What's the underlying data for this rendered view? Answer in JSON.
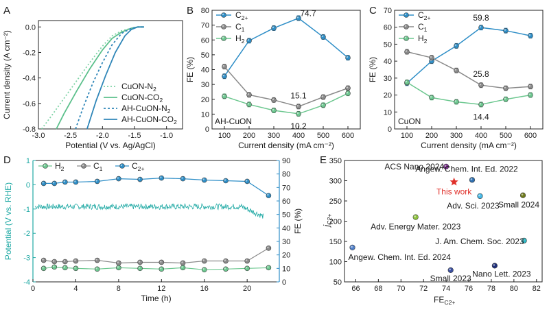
{
  "colors": {
    "axis": "#222222",
    "teal": "#1fa9a4",
    "c2": "#2e8ec7",
    "c1": "#8a8a8a",
    "h2": "#6cc78f",
    "red": "#e0302a"
  },
  "chart_data": [
    {
      "panel": "A",
      "type": "line",
      "xlabel": "Potential (V vs. Ag/AgCl)",
      "ylabel": "Current density (A cm⁻²)",
      "xlim": [
        -3.0,
        -0.75
      ],
      "ylim": [
        -0.8,
        0.05
      ],
      "xticks": [
        -3.0,
        -2.5,
        -2.0,
        -1.5,
        -1.0
      ],
      "xtick_labels": [
        "-3.0",
        "-2.5",
        "-2.0",
        "-1.5",
        "-1.0"
      ],
      "yticks": [
        0.0,
        -0.2,
        -0.4,
        -0.6,
        -0.8
      ],
      "ytick_labels": [
        "0.0",
        "-0.2",
        "-0.4",
        "-0.6",
        "-0.8"
      ],
      "legend": [
        {
          "label": "CuON-N",
          "sub": "2"
        },
        {
          "label": "CuON-CO",
          "sub": "2"
        },
        {
          "label": "AH-CuON-N",
          "sub": "2"
        },
        {
          "label": "AH-CuON-CO",
          "sub": "2"
        }
      ],
      "series": [
        {
          "name": "CuON-N2",
          "color": "#7fd3a6",
          "dash": "2,3",
          "x": [
            -2.95,
            -2.8,
            -2.6,
            -2.4,
            -2.2,
            -2.0,
            -1.85,
            -1.7,
            -1.55,
            -1.45,
            -1.35
          ],
          "y": [
            -0.8,
            -0.7,
            -0.56,
            -0.42,
            -0.28,
            -0.15,
            -0.07,
            -0.03,
            -0.01,
            0.0,
            0.0
          ]
        },
        {
          "name": "CuON-CO2",
          "color": "#5cc08c",
          "dash": "",
          "x": [
            -2.72,
            -2.6,
            -2.4,
            -2.2,
            -2.0,
            -1.85,
            -1.7,
            -1.55,
            -1.45,
            -1.35
          ],
          "y": [
            -0.8,
            -0.68,
            -0.5,
            -0.33,
            -0.18,
            -0.09,
            -0.04,
            -0.01,
            0.0,
            0.0
          ]
        },
        {
          "name": "AH-CuON-N2",
          "color": "#2f86b8",
          "dash": "3,3",
          "x": [
            -2.42,
            -2.3,
            -2.15,
            -2.0,
            -1.85,
            -1.7,
            -1.55,
            -1.45,
            -1.35
          ],
          "y": [
            -0.8,
            -0.63,
            -0.44,
            -0.28,
            -0.14,
            -0.05,
            -0.01,
            0.0,
            0.0
          ]
        },
        {
          "name": "AH-CuON-CO2",
          "color": "#2f86b8",
          "dash": "",
          "x": [
            -2.24,
            -2.1,
            -1.95,
            -1.8,
            -1.65,
            -1.55,
            -1.45,
            -1.35
          ],
          "y": [
            -0.8,
            -0.58,
            -0.38,
            -0.2,
            -0.07,
            -0.02,
            0.0,
            0.0
          ]
        }
      ]
    },
    {
      "panel": "B",
      "type": "line",
      "xlabel": "Current density (mA cm⁻²)",
      "ylabel": "FE (%)",
      "annotation": "AH-CuON",
      "xlim": [
        50,
        650
      ],
      "ylim": [
        0,
        80
      ],
      "xticks": [
        100,
        200,
        300,
        400,
        500,
        600
      ],
      "yticks": [
        0,
        10,
        20,
        30,
        40,
        50,
        60,
        70,
        80
      ],
      "legend": [
        {
          "label": "C",
          "sub": "2+"
        },
        {
          "label": "C",
          "sub": "1"
        },
        {
          "label": "H",
          "sub": "2"
        }
      ],
      "data_labels": [
        {
          "text": "74.7",
          "x": 400,
          "y": 74.7,
          "dx": 14,
          "dy": -3
        },
        {
          "text": "15.1",
          "x": 400,
          "y": 15.1,
          "dx": 0,
          "dy": -12
        },
        {
          "text": "10.2",
          "x": 400,
          "y": 10.2,
          "dx": 0,
          "dy": 22
        }
      ],
      "series": [
        {
          "name": "C2+",
          "color": "#2e8ec7",
          "x": [
            100,
            200,
            300,
            400,
            500,
            600
          ],
          "y": [
            35.5,
            59.5,
            68.0,
            74.7,
            62.0,
            48.0
          ]
        },
        {
          "name": "C1",
          "color": "#8a8a8a",
          "x": [
            100,
            200,
            300,
            400,
            500,
            600
          ],
          "y": [
            42.0,
            23.0,
            19.5,
            15.1,
            21.5,
            27.5
          ]
        },
        {
          "name": "H2",
          "color": "#6cc78f",
          "x": [
            100,
            200,
            300,
            400,
            500,
            600
          ],
          "y": [
            22.0,
            16.5,
            12.5,
            10.2,
            16.0,
            24.0
          ]
        }
      ]
    },
    {
      "panel": "C",
      "type": "line",
      "xlabel": "Current density (mA cm⁻²)",
      "ylabel": "FE (%)",
      "annotation": "CuON",
      "xlim": [
        50,
        650
      ],
      "ylim": [
        0,
        70
      ],
      "xticks": [
        100,
        200,
        300,
        400,
        500,
        600
      ],
      "yticks": [
        0,
        10,
        20,
        30,
        40,
        50,
        60,
        70
      ],
      "legend": [
        {
          "label": "C",
          "sub": "2+"
        },
        {
          "label": "C",
          "sub": "1"
        },
        {
          "label": "H",
          "sub": "2"
        }
      ],
      "data_labels": [
        {
          "text": "59.8",
          "x": 400,
          "y": 59.8,
          "dx": 0,
          "dy": -10
        },
        {
          "text": "25.8",
          "x": 400,
          "y": 25.8,
          "dx": 0,
          "dy": -12
        },
        {
          "text": "14.4",
          "x": 400,
          "y": 14.4,
          "dx": 0,
          "dy": 22
        }
      ],
      "series": [
        {
          "name": "C2+",
          "color": "#2e8ec7",
          "x": [
            100,
            200,
            300,
            400,
            500,
            600
          ],
          "y": [
            27.0,
            40.0,
            49.0,
            59.8,
            58.0,
            55.0
          ]
        },
        {
          "name": "C1",
          "color": "#8a8a8a",
          "x": [
            100,
            200,
            300,
            400,
            500,
            600
          ],
          "y": [
            45.5,
            42.0,
            34.5,
            25.8,
            24.0,
            25.0
          ]
        },
        {
          "name": "H2",
          "color": "#6cc78f",
          "x": [
            100,
            200,
            300,
            400,
            500,
            600
          ],
          "y": [
            27.5,
            18.5,
            16.0,
            14.4,
            17.5,
            20.0
          ]
        }
      ]
    },
    {
      "panel": "D",
      "type": "line",
      "xlabel": "Time (h)",
      "ylabel": "Potential (V vs. RHE)",
      "y2label": "FE (%)",
      "xlim": [
        0,
        23
      ],
      "ylim": [
        -4,
        1
      ],
      "y2lim": [
        0,
        90
      ],
      "xticks": [
        0,
        4,
        8,
        12,
        16,
        20
      ],
      "yticks": [
        1,
        0,
        -1,
        -2,
        -3,
        -4
      ],
      "y2ticks": [
        0,
        10,
        20,
        30,
        40,
        50,
        60,
        70,
        80,
        90
      ],
      "legend": [
        {
          "label": "H",
          "sub": "2"
        },
        {
          "label": "C",
          "sub": "1"
        },
        {
          "label": "C",
          "sub": "2+"
        }
      ],
      "potential_trace": {
        "name": "Potential",
        "color": "#1fa9a4",
        "t_start": 0.2,
        "t_end": 21.5,
        "level": -0.9,
        "noise": 0.12,
        "end_level": -1.3
      },
      "series": [
        {
          "name": "C2+",
          "axis": "FE",
          "color": "#2e8ec7",
          "x": [
            1,
            2,
            3,
            4,
            6,
            8,
            10,
            12,
            14,
            16,
            18,
            20,
            22
          ],
          "y": [
            73,
            73,
            74,
            74,
            74.5,
            76.5,
            76,
            77,
            76.5,
            75.5,
            75,
            74.5,
            64
          ]
        },
        {
          "name": "C1",
          "axis": "FE",
          "color": "#8a8a8a",
          "x": [
            1,
            2,
            3,
            4,
            6,
            8,
            10,
            12,
            14,
            16,
            18,
            20,
            22
          ],
          "y": [
            16,
            15,
            15,
            15.5,
            16,
            14,
            14.5,
            14.5,
            14,
            15.5,
            15.5,
            15.5,
            25
          ]
        },
        {
          "name": "H2",
          "axis": "FE",
          "color": "#6cc78f",
          "x": [
            1,
            2,
            3,
            4,
            6,
            8,
            10,
            12,
            14,
            16,
            18,
            20,
            22
          ],
          "y": [
            10,
            11,
            10.5,
            10,
            9.5,
            10.5,
            10,
            9.5,
            10.5,
            9,
            9.5,
            10,
            10.5
          ]
        }
      ]
    },
    {
      "panel": "E",
      "type": "scatter",
      "xlabel": "FE",
      "xlabel_sub": "C2+",
      "ylabel": "j",
      "ylabel_sub": "C2+",
      "xlim": [
        65,
        82.5
      ],
      "ylim": [
        50,
        350
      ],
      "xticks": [
        66,
        68,
        70,
        72,
        74,
        76,
        78,
        80,
        82
      ],
      "yticks": [
        50,
        100,
        150,
        200,
        250,
        300,
        350
      ],
      "points": [
        {
          "label": "ACS Nano 2024",
          "x": 74.0,
          "y": 335,
          "color": "#7b2c8f",
          "anchor": "end",
          "dx": -3,
          "dy": 4
        },
        {
          "label": "Angew. Chem. Int. Ed. 2022",
          "x": 76.3,
          "y": 302,
          "color": "#2e6fb0",
          "anchor": "middle",
          "dx": -8,
          "dy": -12
        },
        {
          "label": "This work",
          "x": 74.7,
          "y": 297,
          "color": "#e0302a",
          "anchor": "middle",
          "dx": 0,
          "dy": 18,
          "star": true
        },
        {
          "label": "Adv. Sci. 2023",
          "x": 77.0,
          "y": 262,
          "color": "#45b8e6",
          "anchor": "middle",
          "dx": -10,
          "dy": 18
        },
        {
          "label": "Small 2024",
          "x": 80.8,
          "y": 264,
          "color": "#6e7a1a",
          "anchor": "middle",
          "dx": -6,
          "dy": 18
        },
        {
          "label": "Adv. Energy Mater. 2023",
          "x": 71.3,
          "y": 210,
          "color": "#8cc23c",
          "anchor": "middle",
          "dx": 0,
          "dy": 18
        },
        {
          "label": "J. Am. Chem. Soc. 2023",
          "x": 80.9,
          "y": 152,
          "color": "#2fbcc9",
          "anchor": "end",
          "dx": 0,
          "dy": 5
        },
        {
          "label": "Angew. Chem. Int. Ed. 2024",
          "x": 65.7,
          "y": 135,
          "color": "#4f7fc9",
          "anchor": "start",
          "dx": -6,
          "dy": 18
        },
        {
          "label": "Small 2023",
          "x": 74.4,
          "y": 79,
          "color": "#3a4fa0",
          "anchor": "middle",
          "dx": 0,
          "dy": 16
        },
        {
          "label": "Nano Lett. 2023",
          "x": 78.3,
          "y": 90,
          "color": "#1e2f7a",
          "anchor": "middle",
          "dx": 10,
          "dy": 16
        }
      ]
    }
  ],
  "panels": {
    "A": "A",
    "B": "B",
    "C": "C",
    "D": "D",
    "E": "E"
  }
}
